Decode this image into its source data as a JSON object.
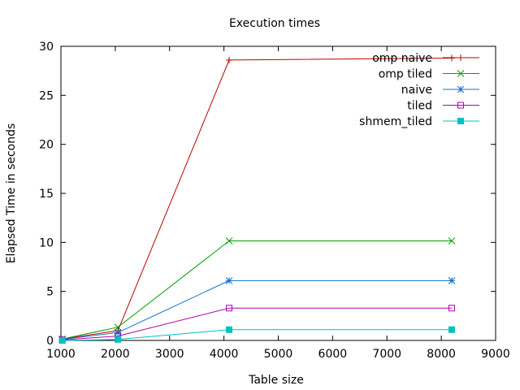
{
  "chart_data": {
    "type": "line",
    "title": "Execution times",
    "xlabel": "Table size",
    "ylabel": "Elapsed Time in seconds",
    "xlim": [
      1000,
      9000
    ],
    "ylim": [
      0,
      30
    ],
    "xticks": [
      "1000",
      "2000",
      "3000",
      "4000",
      "5000",
      "6000",
      "7000",
      "8000",
      "9000"
    ],
    "yticks": [
      "0",
      "5",
      "10",
      "15",
      "20",
      "25",
      "30"
    ],
    "grid": false,
    "legend_position": "top-right",
    "series": [
      {
        "name": "omp naive",
        "color": "#c00000",
        "marker": "plus",
        "x": [
          1024,
          2048,
          4096,
          8192
        ],
        "y": [
          0.15,
          1.0,
          28.6,
          28.8
        ]
      },
      {
        "name": "omp tiled",
        "color": "#00a000",
        "marker": "cross",
        "x": [
          1024,
          2048,
          4096,
          8192
        ],
        "y": [
          0.15,
          1.35,
          10.15,
          10.15
        ]
      },
      {
        "name": "naive",
        "color": "#1070d0",
        "marker": "star",
        "x": [
          1024,
          2048,
          4096,
          8192
        ],
        "y": [
          0.1,
          0.8,
          6.1,
          6.1
        ]
      },
      {
        "name": "tiled",
        "color": "#b000b0",
        "marker": "square-open",
        "x": [
          1024,
          2048,
          4096,
          8192
        ],
        "y": [
          0.05,
          0.45,
          3.3,
          3.3
        ]
      },
      {
        "name": "shmem_tiled",
        "color": "#00c0c0",
        "marker": "square-filled",
        "x": [
          1024,
          2048,
          4096,
          8192
        ],
        "y": [
          0.0,
          0.1,
          1.1,
          1.1
        ]
      }
    ]
  }
}
